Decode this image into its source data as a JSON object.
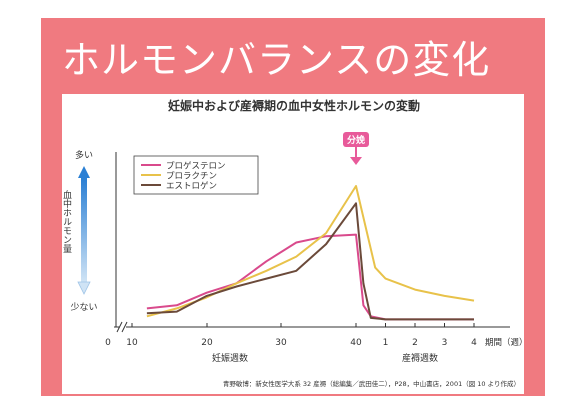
{
  "slide": {
    "title": "ホルモンバランスの変化"
  },
  "colors": {
    "banner": "#f07a80",
    "progesterone": "#d94a8c",
    "prolactin": "#e8c24a",
    "estrogen": "#6b4a3a",
    "arrow_top": "#2a7fd4",
    "arrow_bottom": "#cfe3f5",
    "delivery_marker": "#e85a9a"
  },
  "chart_data": {
    "type": "line",
    "title": "妊娠中および産褥期の血中女性ホルモンの変動",
    "ylabel": "血中ホルモン量",
    "y_high_label": "多い",
    "y_low_label": "少ない",
    "xlabel_pregnancy": "妊娠週数",
    "xlabel_postpartum": "産褥週数",
    "x_unit_label": "期間（週）",
    "delivery_label": "分娩",
    "source": "青野敏博：新女性医学大系 32 産褥（総編集／武田佳二），P28，中山書店，2001（図 10 より作成）",
    "pregnancy_ticks": [
      "0",
      "10",
      "20",
      "30",
      "40"
    ],
    "postpartum_ticks": [
      "1",
      "2",
      "3",
      "4"
    ],
    "ylim": [
      0,
      100
    ],
    "legend_position": "top-left",
    "grid": false,
    "series": [
      {
        "name": "プロゲステロン",
        "points": [
          [
            12,
            8
          ],
          [
            16,
            10
          ],
          [
            20,
            18
          ],
          [
            24,
            24
          ],
          [
            28,
            38
          ],
          [
            32,
            50
          ],
          [
            36,
            54
          ],
          [
            40,
            55
          ],
          [
            40.5,
            10
          ],
          [
            41,
            3
          ],
          [
            42,
            1
          ],
          [
            44,
            1
          ],
          [
            46,
            1
          ],
          [
            48,
            1
          ]
        ]
      },
      {
        "name": "プロラクチン",
        "points": [
          [
            12,
            3
          ],
          [
            16,
            8
          ],
          [
            20,
            15
          ],
          [
            24,
            24
          ],
          [
            28,
            32
          ],
          [
            32,
            41
          ],
          [
            36,
            56
          ],
          [
            40,
            86
          ],
          [
            41.3,
            34
          ],
          [
            42,
            27
          ],
          [
            44,
            20
          ],
          [
            46,
            16
          ],
          [
            48,
            13
          ]
        ]
      },
      {
        "name": "エストロゲン",
        "points": [
          [
            12,
            5
          ],
          [
            16,
            6
          ],
          [
            20,
            16
          ],
          [
            24,
            22
          ],
          [
            28,
            27
          ],
          [
            32,
            32
          ],
          [
            36,
            49
          ],
          [
            40,
            75
          ],
          [
            40.5,
            24
          ],
          [
            41,
            2
          ],
          [
            42,
            1
          ],
          [
            44,
            1
          ],
          [
            46,
            1
          ],
          [
            48,
            1
          ]
        ]
      }
    ]
  }
}
